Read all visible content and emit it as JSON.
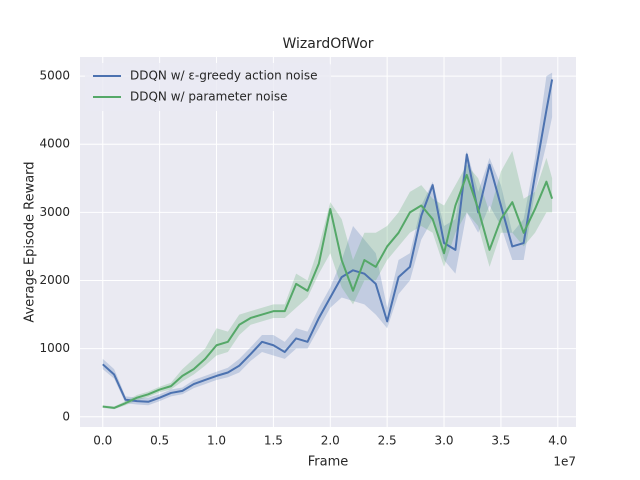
{
  "chart_data": {
    "type": "line",
    "title": "WizardOfWor",
    "xlabel": "Frame",
    "ylabel": "Average Episode Reward",
    "x_offset_label": "1e7",
    "x": [
      0.0,
      0.1,
      0.2,
      0.3,
      0.4,
      0.5,
      0.6,
      0.7,
      0.8,
      0.9,
      1.0,
      1.1,
      1.2,
      1.3,
      1.4,
      1.5,
      1.6,
      1.7,
      1.8,
      1.9,
      2.0,
      2.1,
      2.2,
      2.3,
      2.4,
      2.5,
      2.6,
      2.7,
      2.8,
      2.9,
      3.0,
      3.1,
      3.2,
      3.3,
      3.4,
      3.5,
      3.6,
      3.7,
      3.8,
      3.9,
      3.95
    ],
    "series": [
      {
        "name": "DDQN w/ ε-greedy action noise",
        "color": "#4c72b0",
        "values": [
          770,
          620,
          250,
          230,
          220,
          280,
          350,
          380,
          480,
          540,
          600,
          650,
          750,
          920,
          1100,
          1050,
          950,
          1150,
          1100,
          1450,
          1750,
          2050,
          2150,
          2100,
          1950,
          1400,
          2050,
          2200,
          2950,
          3400,
          2550,
          2450,
          3850,
          3000,
          3700,
          3100,
          2500,
          2550,
          3550,
          4500,
          4950
        ],
        "lower": [
          700,
          560,
          200,
          180,
          170,
          230,
          300,
          330,
          420,
          480,
          540,
          580,
          650,
          820,
          950,
          900,
          850,
          1000,
          1000,
          1300,
          1600,
          1750,
          1700,
          1650,
          1500,
          1300,
          1800,
          2000,
          2600,
          2900,
          2300,
          2100,
          3000,
          2700,
          3100,
          2800,
          2300,
          2300,
          3300,
          4000,
          4400
        ],
        "upper": [
          850,
          700,
          300,
          280,
          280,
          330,
          400,
          430,
          540,
          600,
          660,
          720,
          850,
          1020,
          1200,
          1200,
          1100,
          1300,
          1250,
          1600,
          1900,
          2300,
          2800,
          2600,
          2400,
          1600,
          2300,
          2400,
          3100,
          3450,
          2800,
          2900,
          3900,
          3300,
          3800,
          3400,
          2700,
          2900,
          3800,
          5000,
          5050
        ]
      },
      {
        "name": "DDQN w/ parameter noise",
        "color": "#55a868",
        "values": [
          150,
          130,
          200,
          280,
          330,
          400,
          450,
          600,
          700,
          850,
          1050,
          1100,
          1350,
          1450,
          1500,
          1550,
          1550,
          1950,
          1850,
          2250,
          3050,
          2300,
          1850,
          2300,
          2200,
          2500,
          2700,
          3000,
          3100,
          2900,
          2400,
          3100,
          3550,
          3050,
          2450,
          2900,
          3150,
          2700,
          3050,
          3450,
          3200
        ],
        "lower": [
          130,
          110,
          170,
          240,
          290,
          360,
          400,
          520,
          620,
          750,
          900,
          950,
          1200,
          1350,
          1400,
          1450,
          1450,
          1600,
          1750,
          2100,
          2400,
          1900,
          1650,
          2000,
          2000,
          2300,
          2500,
          2700,
          2800,
          2700,
          2200,
          2700,
          3000,
          2800,
          2200,
          2700,
          2700,
          2500,
          2700,
          3000,
          3000
        ],
        "upper": [
          170,
          150,
          230,
          320,
          370,
          440,
          500,
          700,
          850,
          1000,
          1300,
          1250,
          1500,
          1550,
          1600,
          1650,
          1650,
          2100,
          2000,
          2500,
          3150,
          2900,
          2300,
          2700,
          2700,
          2800,
          3000,
          3300,
          3400,
          3200,
          3100,
          3400,
          3700,
          3500,
          3000,
          3600,
          3900,
          3200,
          3300,
          3800,
          3500
        ]
      }
    ],
    "xlim": [
      -0.2,
      4.16
    ],
    "ylim": [
      -150,
      5280
    ],
    "xticks": [
      {
        "value": 0,
        "label": "0.0"
      },
      0.5,
      {
        "value": 1,
        "label": "1.0"
      },
      1.5,
      {
        "value": 2,
        "label": "2.0"
      },
      2.5,
      {
        "value": 3,
        "label": "3.0"
      },
      3.5,
      {
        "value": 4,
        "label": "4.0"
      }
    ],
    "yticks": [
      0,
      1000,
      2000,
      3000,
      4000,
      5000
    ],
    "grid": true,
    "legend": "upper-left"
  }
}
